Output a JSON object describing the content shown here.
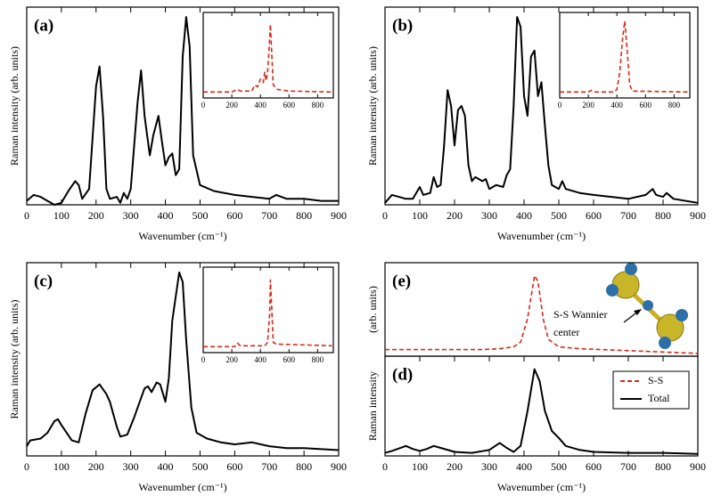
{
  "chart_data": [
    {
      "type": "line",
      "title": "(a)",
      "xlabel": "Wavenumber (cm⁻¹)",
      "ylabel": "Raman intensity (arb. units)",
      "xlim": [
        0,
        900
      ],
      "ylim": [
        0,
        1
      ],
      "xticks": [
        0,
        100,
        200,
        300,
        400,
        500,
        600,
        700,
        800,
        900
      ],
      "series": [
        {
          "name": "Total",
          "color": "#000000",
          "dash": false,
          "x": [
            0,
            20,
            40,
            60,
            80,
            100,
            120,
            140,
            150,
            160,
            180,
            200,
            210,
            220,
            230,
            240,
            260,
            270,
            280,
            290,
            300,
            320,
            330,
            340,
            355,
            365,
            380,
            390,
            400,
            410,
            420,
            430,
            440,
            450,
            460,
            470,
            480,
            500,
            540,
            600,
            650,
            700,
            720,
            750,
            800,
            850,
            900
          ],
          "values": [
            0.02,
            0.05,
            0.04,
            0.02,
            0.0,
            0.01,
            0.07,
            0.12,
            0.1,
            0.03,
            0.08,
            0.6,
            0.7,
            0.45,
            0.08,
            0.03,
            0.04,
            0.01,
            0.06,
            0.03,
            0.08,
            0.52,
            0.68,
            0.45,
            0.25,
            0.35,
            0.45,
            0.32,
            0.2,
            0.24,
            0.26,
            0.15,
            0.18,
            0.75,
            0.95,
            0.8,
            0.25,
            0.1,
            0.07,
            0.05,
            0.04,
            0.03,
            0.05,
            0.03,
            0.03,
            0.02,
            0.02
          ]
        }
      ]
    },
    {
      "type": "line",
      "xlim": [
        0,
        910
      ],
      "ylim": [
        0,
        1
      ],
      "xticks": [
        0,
        200,
        400,
        600,
        800
      ],
      "series": [
        {
          "name": "S-S",
          "color": "#d62a1a",
          "dash": true,
          "x": [
            0,
            200,
            240,
            260,
            340,
            360,
            380,
            400,
            420,
            430,
            440,
            450,
            460,
            470,
            480,
            490,
            520,
            600,
            900
          ],
          "values": [
            0.07,
            0.07,
            0.1,
            0.08,
            0.08,
            0.15,
            0.13,
            0.22,
            0.18,
            0.3,
            0.2,
            0.3,
            0.55,
            0.86,
            0.5,
            0.15,
            0.1,
            0.08,
            0.07
          ]
        }
      ]
    },
    {
      "type": "line",
      "title": "(b)",
      "xlabel": "Wavenumber (cm⁻¹)",
      "ylabel": "Raman intensity (arb. units)",
      "xlim": [
        0,
        900
      ],
      "ylim": [
        0,
        1
      ],
      "xticks": [
        0,
        100,
        200,
        300,
        400,
        500,
        600,
        700,
        800,
        900
      ],
      "series": [
        {
          "name": "Total",
          "color": "#000000",
          "dash": false,
          "x": [
            0,
            20,
            40,
            60,
            80,
            100,
            110,
            130,
            140,
            150,
            160,
            170,
            180,
            190,
            200,
            210,
            220,
            230,
            240,
            250,
            260,
            280,
            290,
            300,
            320,
            340,
            350,
            360,
            370,
            380,
            390,
            400,
            410,
            420,
            430,
            440,
            450,
            460,
            470,
            480,
            500,
            510,
            520,
            560,
            600,
            700,
            750,
            770,
            780,
            800,
            810,
            830,
            900
          ],
          "values": [
            0.01,
            0.05,
            0.04,
            0.03,
            0.03,
            0.09,
            0.05,
            0.06,
            0.14,
            0.09,
            0.1,
            0.3,
            0.58,
            0.5,
            0.3,
            0.48,
            0.5,
            0.45,
            0.2,
            0.12,
            0.14,
            0.12,
            0.13,
            0.08,
            0.1,
            0.09,
            0.15,
            0.18,
            0.5,
            0.95,
            0.9,
            0.55,
            0.45,
            0.75,
            0.78,
            0.55,
            0.62,
            0.4,
            0.2,
            0.1,
            0.08,
            0.12,
            0.08,
            0.06,
            0.05,
            0.03,
            0.05,
            0.08,
            0.05,
            0.04,
            0.06,
            0.03,
            0.01
          ]
        }
      ]
    },
    {
      "type": "line",
      "xlim": [
        0,
        910
      ],
      "ylim": [
        0,
        1
      ],
      "xticks": [
        0,
        200,
        400,
        600,
        800
      ],
      "series": [
        {
          "name": "S-S",
          "color": "#d62a1a",
          "dash": true,
          "x": [
            0,
            200,
            220,
            240,
            380,
            400,
            420,
            440,
            455,
            470,
            490,
            510,
            900
          ],
          "values": [
            0.07,
            0.07,
            0.09,
            0.07,
            0.07,
            0.1,
            0.3,
            0.7,
            0.9,
            0.6,
            0.15,
            0.08,
            0.07
          ]
        }
      ]
    },
    {
      "type": "line",
      "title": "(c)",
      "xlabel": "Wavenumber (cm⁻¹)",
      "ylabel": "Raman intensity (arb. units)",
      "xlim": [
        0,
        900
      ],
      "ylim": [
        0,
        1
      ],
      "xticks": [
        0,
        100,
        200,
        300,
        400,
        500,
        600,
        700,
        800,
        900
      ],
      "series": [
        {
          "name": "Total",
          "color": "#000000",
          "dash": false,
          "x": [
            0,
            10,
            40,
            60,
            80,
            90,
            100,
            130,
            150,
            170,
            190,
            210,
            230,
            240,
            260,
            270,
            290,
            310,
            330,
            340,
            350,
            360,
            375,
            385,
            400,
            410,
            420,
            440,
            450,
            460,
            475,
            490,
            520,
            560,
            600,
            650,
            700,
            750,
            800,
            900
          ],
          "values": [
            0.05,
            0.08,
            0.09,
            0.12,
            0.18,
            0.19,
            0.16,
            0.08,
            0.07,
            0.22,
            0.34,
            0.37,
            0.32,
            0.28,
            0.15,
            0.1,
            0.11,
            0.2,
            0.3,
            0.35,
            0.36,
            0.33,
            0.38,
            0.37,
            0.28,
            0.4,
            0.7,
            0.95,
            0.9,
            0.6,
            0.25,
            0.12,
            0.09,
            0.07,
            0.06,
            0.07,
            0.05,
            0.04,
            0.04,
            0.03
          ]
        }
      ]
    },
    {
      "type": "line",
      "xlim": [
        0,
        910
      ],
      "ylim": [
        0,
        1
      ],
      "xticks": [
        0,
        200,
        400,
        600,
        800
      ],
      "series": [
        {
          "name": "S-S",
          "color": "#d62a1a",
          "dash": true,
          "x": [
            0,
            220,
            240,
            260,
            430,
            450,
            465,
            470,
            480,
            490,
            510,
            900
          ],
          "values": [
            0.07,
            0.07,
            0.11,
            0.08,
            0.08,
            0.12,
            0.45,
            0.85,
            0.5,
            0.12,
            0.1,
            0.08
          ]
        }
      ]
    },
    {
      "type": "line",
      "title": "(e)",
      "ylabel": "(arb. units)",
      "annotation": [
        "S-S Wannier",
        "center"
      ],
      "xlim": [
        0,
        900
      ],
      "ylim": [
        0,
        1
      ],
      "series": [
        {
          "name": "S-S",
          "color": "#d62a1a",
          "dash": true,
          "x": [
            0,
            280,
            330,
            370,
            390,
            410,
            430,
            440,
            455,
            470,
            500,
            560,
            900
          ],
          "values": [
            0.07,
            0.07,
            0.08,
            0.1,
            0.15,
            0.4,
            0.86,
            0.8,
            0.4,
            0.18,
            0.1,
            0.08,
            0.03
          ]
        }
      ]
    },
    {
      "type": "line",
      "title": "(d)",
      "xlabel": "Wavenumber (cm⁻¹)",
      "ylabel": "Raman intensity",
      "legend": "upper right",
      "xlim": [
        0,
        900
      ],
      "ylim": [
        0,
        1
      ],
      "xticks": [
        0,
        100,
        200,
        300,
        400,
        500,
        600,
        700,
        800,
        900
      ],
      "series": [
        {
          "name": "Total",
          "color": "#000000",
          "dash": false,
          "x": [
            0,
            20,
            60,
            80,
            100,
            120,
            140,
            160,
            200,
            250,
            300,
            330,
            350,
            370,
            390,
            410,
            430,
            445,
            460,
            480,
            500,
            520,
            560,
            600,
            700,
            800,
            900
          ],
          "values": [
            0.03,
            0.05,
            0.1,
            0.07,
            0.05,
            0.07,
            0.1,
            0.08,
            0.04,
            0.03,
            0.06,
            0.13,
            0.08,
            0.04,
            0.1,
            0.45,
            0.87,
            0.75,
            0.45,
            0.25,
            0.18,
            0.1,
            0.06,
            0.04,
            0.03,
            0.03,
            0.02
          ]
        }
      ]
    }
  ]
}
